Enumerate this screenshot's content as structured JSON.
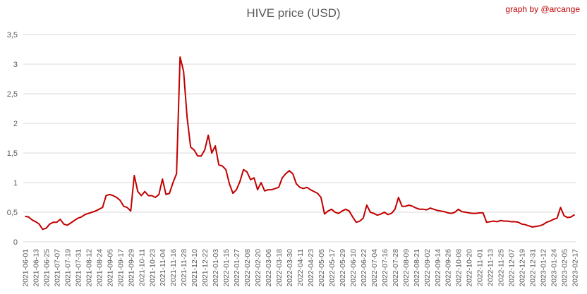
{
  "chart_data": {
    "type": "line",
    "title": "HIVE price (USD)",
    "annotation": "graph by @arcange",
    "annotation_color": "#c00000",
    "color": "#c00000",
    "categories": [
      "2021-06-01",
      null,
      null,
      "2021-06-13",
      null,
      null,
      "2021-06-25",
      null,
      null,
      "2021-07-07",
      null,
      null,
      "2021-07-19",
      null,
      null,
      "2021-07-31",
      null,
      null,
      "2021-08-12",
      null,
      null,
      "2021-08-24",
      null,
      null,
      "2021-09-05",
      null,
      null,
      "2021-09-17",
      null,
      null,
      "2021-09-29",
      null,
      null,
      "2021-10-11",
      null,
      null,
      "2021-10-23",
      null,
      null,
      "2021-11-04",
      null,
      null,
      "2021-11-16",
      null,
      null,
      "2021-11-28",
      null,
      null,
      "2021-12-10",
      null,
      null,
      "2021-12-22",
      null,
      null,
      "2022-01-03",
      null,
      null,
      "2022-01-15",
      null,
      null,
      "2022-01-27",
      null,
      null,
      "2022-02-08",
      null,
      null,
      "2022-02-20",
      null,
      null,
      "2022-03-06",
      null,
      null,
      "2022-03-18",
      null,
      null,
      "2022-03-30",
      null,
      null,
      "2022-04-11",
      null,
      null,
      "2022-04-23",
      null,
      null,
      "2022-05-05",
      null,
      null,
      "2022-05-17",
      null,
      null,
      "2022-05-29",
      null,
      null,
      "2022-06-10",
      null,
      null,
      "2022-06-22",
      null,
      null,
      "2022-07-04",
      null,
      null,
      "2022-07-16",
      null,
      null,
      "2022-07-28",
      null,
      null,
      "2022-08-09",
      null,
      null,
      "2022-08-21",
      null,
      null,
      "2022-09-02",
      null,
      null,
      "2022-09-14",
      null,
      null,
      "2022-09-26",
      null,
      null,
      "2022-10-08",
      null,
      null,
      "2022-10-20",
      null,
      null,
      "2022-11-01",
      null,
      null,
      "2022-11-13",
      null,
      null,
      "2022-11-25",
      null,
      null,
      "2022-12-07",
      null,
      null,
      "2022-12-19",
      null,
      null,
      "2022-12-31",
      null,
      null,
      "2023-01-12",
      null,
      null,
      "2023-01-24",
      null,
      null,
      "2023-02-05",
      null,
      null,
      "2023-02-17"
    ],
    "values": [
      0.43,
      0.42,
      0.37,
      0.34,
      0.3,
      0.21,
      0.23,
      0.3,
      0.33,
      0.33,
      0.38,
      0.3,
      0.28,
      0.32,
      0.36,
      0.4,
      0.42,
      0.46,
      0.48,
      0.5,
      0.52,
      0.55,
      0.58,
      0.78,
      0.8,
      0.78,
      0.75,
      0.7,
      0.6,
      0.58,
      0.52,
      1.12,
      0.85,
      0.78,
      0.85,
      0.78,
      0.78,
      0.75,
      0.8,
      1.06,
      0.8,
      0.82,
      1.0,
      1.15,
      3.12,
      2.88,
      2.1,
      1.6,
      1.55,
      1.45,
      1.45,
      1.55,
      1.8,
      1.5,
      1.62,
      1.3,
      1.28,
      1.22,
      0.98,
      0.82,
      0.88,
      1.02,
      1.22,
      1.18,
      1.05,
      1.08,
      0.88,
      1.0,
      0.86,
      0.88,
      0.88,
      0.9,
      0.92,
      1.08,
      1.15,
      1.2,
      1.15,
      0.98,
      0.92,
      0.9,
      0.92,
      0.88,
      0.85,
      0.82,
      0.75,
      0.47,
      0.52,
      0.55,
      0.5,
      0.48,
      0.52,
      0.55,
      0.52,
      0.42,
      0.33,
      0.35,
      0.4,
      0.62,
      0.5,
      0.48,
      0.45,
      0.47,
      0.5,
      0.46,
      0.48,
      0.55,
      0.75,
      0.6,
      0.6,
      0.62,
      0.6,
      0.57,
      0.55,
      0.55,
      0.54,
      0.57,
      0.55,
      0.53,
      0.52,
      0.51,
      0.49,
      0.48,
      0.5,
      0.55,
      0.51,
      0.5,
      0.49,
      0.48,
      0.48,
      0.49,
      0.49,
      0.33,
      0.34,
      0.35,
      0.34,
      0.36,
      0.35,
      0.35,
      0.34,
      0.34,
      0.33,
      0.3,
      0.29,
      0.27,
      0.25,
      0.26,
      0.27,
      0.29,
      0.33,
      0.35,
      0.38,
      0.4,
      0.58,
      0.44,
      0.41,
      0.42,
      0.46
    ],
    "ylim": [
      0,
      3.5
    ],
    "yticks": [
      0,
      {
        "value": 0.5,
        "label": "0,5"
      },
      1,
      {
        "value": 1.5,
        "label": "1,5"
      },
      2,
      {
        "value": 2.5,
        "label": "2,5"
      },
      3,
      {
        "value": 3.5,
        "label": "3,5"
      }
    ],
    "grid": true
  }
}
